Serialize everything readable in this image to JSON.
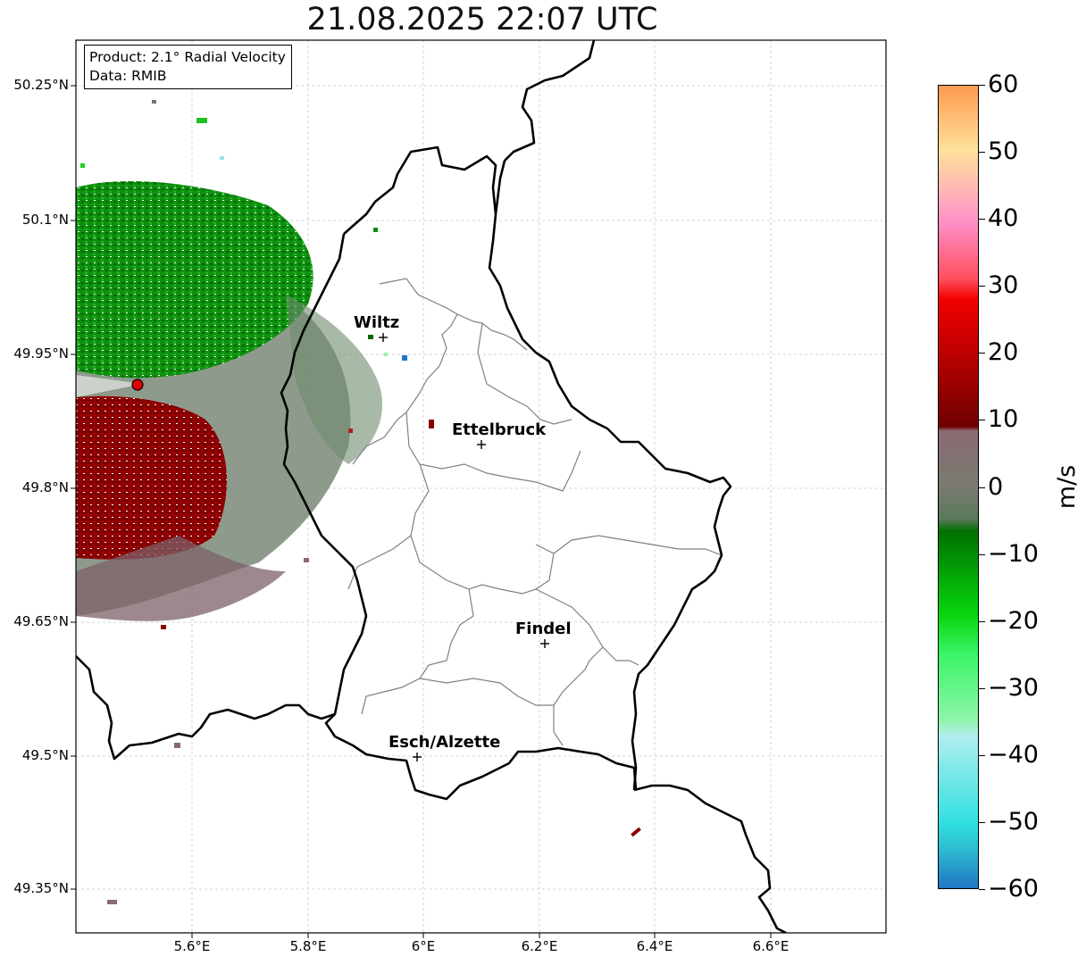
{
  "title": "21.08.2025 22:07 UTC",
  "infobox": {
    "product": "Product: 2.1° Radial Velocity",
    "data": "Data: RMIB"
  },
  "axes": {
    "lat_ticks": [
      "50.25°N",
      "50.1°N",
      "49.95°N",
      "49.8°N",
      "49.65°N",
      "49.5°N",
      "49.35°N"
    ],
    "lon_ticks": [
      "5.6°E",
      "5.8°E",
      "6°E",
      "6.2°E",
      "6.4°E",
      "6.6°E"
    ]
  },
  "cities": [
    {
      "name": "Wiltz"
    },
    {
      "name": "Ettelbruck"
    },
    {
      "name": "Findel"
    },
    {
      "name": "Esch/Alzette"
    }
  ],
  "colorbar": {
    "unit": "m/s",
    "min": -60,
    "max": 60,
    "ticks": [
      "60",
      "50",
      "40",
      "30",
      "20",
      "10",
      "0",
      "−10",
      "−20",
      "−30",
      "−40",
      "−50",
      "−60"
    ],
    "colors": {
      "c_m60": "#1f77c4",
      "c_m55": "#2fbcd0",
      "c_m50": "#30dfe0",
      "c_m40": "#b0eeee",
      "c_m30": "#8ef5a8",
      "c_m25": "#3cf56a",
      "c_m20": "#08d70e",
      "c_m10": "#007000",
      "c_m5": "#5a7a5a",
      "c_0": "#7a7a72",
      "c_5": "#8a6a70",
      "c_10": "#6e0000",
      "c_20": "#c00000",
      "c_28": "#f20000",
      "c_32": "#ff5060",
      "c_40": "#ff90c8",
      "c_45": "#ffc0b0",
      "c_50": "#ffe09a",
      "c_60": "#ff9a50"
    }
  },
  "radar_colors": {
    "away": "#8b0000",
    "toward": "#0a8a0a",
    "neutral": "#6e8a6e",
    "site": "#e00000"
  }
}
